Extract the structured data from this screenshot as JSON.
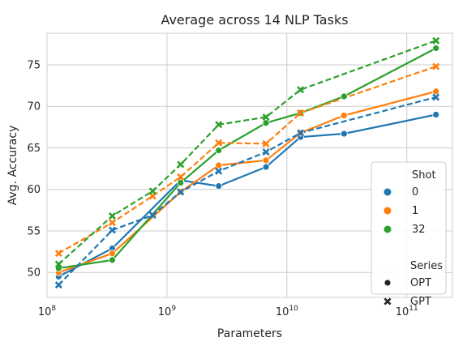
{
  "chart_data": {
    "type": "line",
    "title": "Average across 14 NLP Tasks",
    "xlabel": "Parameters",
    "ylabel": "Avg. Accuracy",
    "xscale": "log",
    "xlim": [
      100000000.0,
      240000000000.0
    ],
    "ylim": [
      47.0,
      78.8
    ],
    "x_ticks": [
      {
        "value": 100000000.0,
        "base": "10",
        "exp": "8"
      },
      {
        "value": 1000000000.0,
        "base": "10",
        "exp": "9"
      },
      {
        "value": 10000000000.0,
        "base": "10",
        "exp": "10"
      },
      {
        "value": 100000000000.0,
        "base": "10",
        "exp": "11"
      }
    ],
    "y_ticks": [
      {
        "value": 50,
        "label": "50"
      },
      {
        "value": 55,
        "label": "55"
      },
      {
        "value": 60,
        "label": "60"
      },
      {
        "value": 65,
        "label": "65"
      },
      {
        "value": 70,
        "label": "70"
      },
      {
        "value": 75,
        "label": "75"
      }
    ],
    "grid": true,
    "legend": {
      "placement": "lower-right",
      "shot_title": "Shot",
      "series_title": "Series",
      "shots": [
        {
          "label": "0",
          "color": "#1f77b4"
        },
        {
          "label": "1",
          "color": "#ff7f0e"
        },
        {
          "label": "32",
          "color": "#2ca02c"
        }
      ],
      "models": [
        {
          "label": "OPT",
          "marker": "circle"
        },
        {
          "label": "GPT",
          "marker": "x"
        }
      ]
    },
    "series": [
      {
        "model": "OPT",
        "shot": "0",
        "color": "#1f77b4",
        "dash": false,
        "marker": "circle",
        "points": [
          [
            125000000.0,
            49.5
          ],
          [
            350000000.0,
            52.9
          ],
          [
            1300000000.0,
            61.1
          ],
          [
            2700000000.0,
            60.4
          ],
          [
            6700000000.0,
            62.7
          ],
          [
            13000000000.0,
            66.3
          ],
          [
            30000000000.0,
            66.7
          ],
          [
            175000000000.0,
            69.0
          ]
        ]
      },
      {
        "model": "OPT",
        "shot": "1",
        "color": "#ff7f0e",
        "dash": false,
        "marker": "circle",
        "points": [
          [
            125000000.0,
            50.0
          ],
          [
            350000000.0,
            52.3
          ],
          [
            1300000000.0,
            59.7
          ],
          [
            2700000000.0,
            62.9
          ],
          [
            6700000000.0,
            63.5
          ],
          [
            13000000000.0,
            66.8
          ],
          [
            30000000000.0,
            68.9
          ],
          [
            175000000000.0,
            71.8
          ]
        ]
      },
      {
        "model": "OPT",
        "shot": "32",
        "color": "#2ca02c",
        "dash": false,
        "marker": "circle",
        "points": [
          [
            125000000.0,
            50.5
          ],
          [
            350000000.0,
            51.5
          ],
          [
            1300000000.0,
            60.8
          ],
          [
            2700000000.0,
            64.7
          ],
          [
            6700000000.0,
            68.0
          ],
          [
            13000000000.0,
            69.2
          ],
          [
            30000000000.0,
            71.2
          ],
          [
            175000000000.0,
            77.0
          ]
        ]
      },
      {
        "model": "GPT",
        "shot": "0",
        "color": "#1f77b4",
        "dash": true,
        "marker": "x",
        "points": [
          [
            125000000.0,
            48.5
          ],
          [
            350000000.0,
            55.1
          ],
          [
            760000000.0,
            56.9
          ],
          [
            1300000000.0,
            59.7
          ],
          [
            2700000000.0,
            62.2
          ],
          [
            6700000000.0,
            64.5
          ],
          [
            13000000000.0,
            66.8
          ],
          [
            175000000000.0,
            71.1
          ]
        ]
      },
      {
        "model": "GPT",
        "shot": "1",
        "color": "#ff7f0e",
        "dash": true,
        "marker": "x",
        "points": [
          [
            125000000.0,
            52.3
          ],
          [
            350000000.0,
            56.0
          ],
          [
            760000000.0,
            59.2
          ],
          [
            1300000000.0,
            61.5
          ],
          [
            2700000000.0,
            65.6
          ],
          [
            6700000000.0,
            65.5
          ],
          [
            13000000000.0,
            69.2
          ],
          [
            175000000000.0,
            74.8
          ]
        ]
      },
      {
        "model": "GPT",
        "shot": "32",
        "color": "#2ca02c",
        "dash": true,
        "marker": "x",
        "points": [
          [
            125000000.0,
            51.0
          ],
          [
            350000000.0,
            56.8
          ],
          [
            760000000.0,
            59.8
          ],
          [
            1300000000.0,
            63.0
          ],
          [
            2700000000.0,
            67.8
          ],
          [
            6700000000.0,
            68.7
          ],
          [
            13000000000.0,
            72.0
          ],
          [
            175000000000.0,
            77.9
          ]
        ]
      }
    ]
  }
}
